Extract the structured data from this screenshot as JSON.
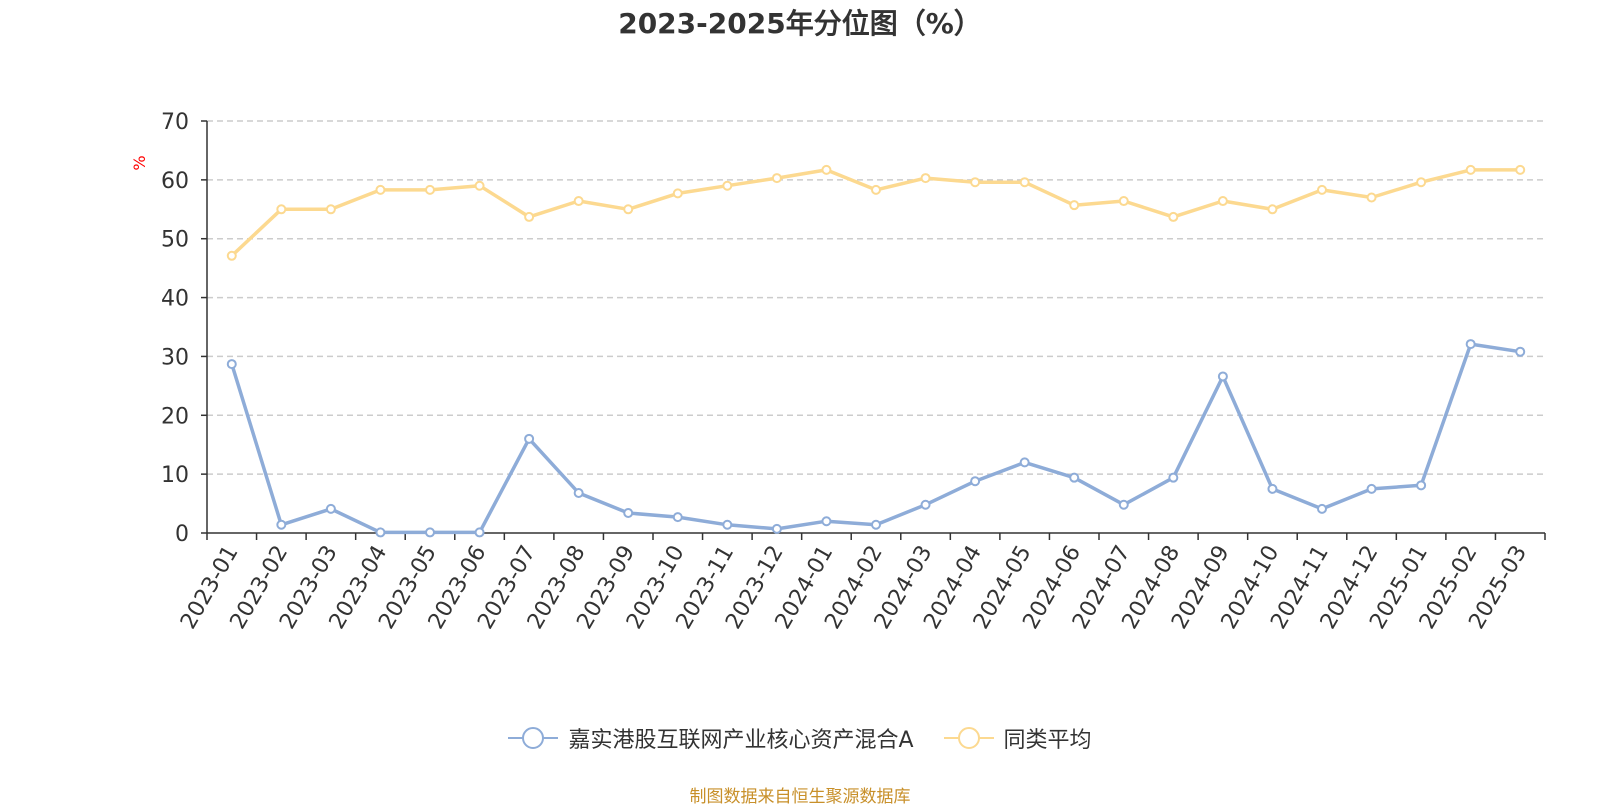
{
  "chart_data": {
    "type": "line",
    "title": "2023-2025年分位图（%）",
    "ylabel": "%",
    "xlabel": "",
    "ylim": [
      0,
      70
    ],
    "yticks": [
      0,
      10,
      20,
      30,
      40,
      50,
      60,
      70
    ],
    "grid": true,
    "legend_position": "bottom",
    "categories": [
      "2023-01",
      "2023-02",
      "2023-03",
      "2023-04",
      "2023-05",
      "2023-06",
      "2023-07",
      "2023-08",
      "2023-09",
      "2023-10",
      "2023-11",
      "2023-12",
      "2024-01",
      "2024-02",
      "2024-03",
      "2024-04",
      "2024-05",
      "2024-06",
      "2024-07",
      "2024-08",
      "2024-09",
      "2024-10",
      "2024-11",
      "2024-12",
      "2025-01",
      "2025-02",
      "2025-03"
    ],
    "series": [
      {
        "name": "嘉实港股互联网产业核心资产混合A",
        "color": "#8eacd8",
        "values": [
          28.7,
          1.4,
          4.1,
          0.1,
          0.1,
          0.1,
          16.0,
          6.8,
          3.4,
          2.7,
          1.4,
          0.7,
          2.0,
          1.4,
          4.8,
          8.8,
          12.0,
          9.4,
          4.8,
          9.4,
          26.6,
          7.5,
          4.1,
          7.5,
          8.1,
          32.1,
          30.8
        ]
      },
      {
        "name": "同类平均",
        "color": "#fcd990",
        "values": [
          47.1,
          55.0,
          55.0,
          58.3,
          58.3,
          59.0,
          53.7,
          56.4,
          55.0,
          57.7,
          59.0,
          60.3,
          61.7,
          58.3,
          60.3,
          59.6,
          59.6,
          55.7,
          56.4,
          53.7,
          56.4,
          55.0,
          58.3,
          57.0,
          59.6,
          61.7,
          61.7
        ]
      }
    ]
  },
  "source_note": "制图数据来自恒生聚源数据库"
}
